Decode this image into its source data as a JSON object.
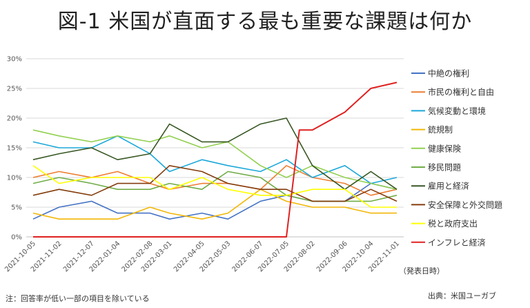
{
  "title": "図-1  米国が直面する最も重要な課題は何か",
  "footnote": "注：回答率が低い一部の項目を除いている",
  "source": "出典：米国ユーガブ",
  "x_unit": "（発表日時）",
  "chart_data": {
    "type": "line",
    "title": "図-1  米国が直面する最も重要な課題は何か",
    "xlabel": "（発表日時）",
    "ylabel": "",
    "ylim": [
      0,
      30
    ],
    "yticks": [
      0,
      5,
      10,
      15,
      20,
      25,
      30
    ],
    "ytick_labels": [
      "0%",
      "5%",
      "10%",
      "15%",
      "20%",
      "25%",
      "30%"
    ],
    "grid": true,
    "legend_position": "right",
    "categories": [
      "2021-10-05",
      "2021-11-02",
      "2021-12-07",
      "2022-01-04",
      "2022-02-08",
      "2022-03-01",
      "2022-04-05",
      "2022-05-03",
      "2022-06-07",
      "2022-07-05",
      "2022-08-02",
      "2022-09-06",
      "2022-10-04",
      "2022-11-01"
    ],
    "x_points": [
      "2021-10-05",
      "2021-11-02",
      "2021-12-07",
      "2022-01-04",
      "2022-02-08",
      "2022-03-01",
      "2022-04-05",
      "2022-05-03",
      "2022-06-07",
      "2022-07-05",
      "2022-08-02",
      "2022-09-06",
      "2022-10-04",
      "2022-11-01"
    ],
    "series": [
      {
        "name": "中絶の権利",
        "color": "#4472C4",
        "x": [
          "2021-10-05",
          "2021-11-02",
          "2021-12-07",
          "2022-01-04",
          "2022-02-08",
          "2022-03-01",
          "2022-04-05",
          "2022-05-03",
          "2022-06-07",
          "2022-07-05",
          "2022-08-02",
          "2022-09-06",
          "2022-10-04",
          "2022-11-01"
        ],
        "values": [
          3,
          5,
          6,
          4,
          4,
          3,
          4,
          3,
          6,
          7,
          6,
          6,
          9,
          8
        ]
      },
      {
        "name": "市民の権利と自由",
        "color": "#ED7D31",
        "x": [
          "2021-10-05",
          "2021-11-02",
          "2021-12-07",
          "2022-01-04",
          "2022-02-08",
          "2022-03-01",
          "2022-04-05",
          "2022-05-03",
          "2022-06-07",
          "2022-07-05",
          "2022-08-02",
          "2022-09-06",
          "2022-10-04",
          "2022-11-01"
        ],
        "values": [
          10,
          11,
          10,
          11,
          9,
          8,
          9,
          9,
          8,
          12,
          10,
          9,
          7,
          8
        ]
      },
      {
        "name": "気候変動と環境",
        "color": "#1BA8D9",
        "x": [
          "2021-10-05",
          "2021-11-02",
          "2021-12-07",
          "2022-01-04",
          "2022-02-08",
          "2022-03-01",
          "2022-04-05",
          "2022-05-03",
          "2022-06-07",
          "2022-07-05",
          "2022-08-02",
          "2022-09-06",
          "2022-10-04",
          "2022-11-01"
        ],
        "values": [
          16,
          15,
          15,
          17,
          14,
          11,
          13,
          12,
          11,
          13,
          10,
          12,
          9,
          10
        ]
      },
      {
        "name": "銃規制",
        "color": "#F2B705",
        "x": [
          "2021-10-05",
          "2021-11-02",
          "2021-12-07",
          "2022-01-04",
          "2022-02-08",
          "2022-03-01",
          "2022-04-05",
          "2022-05-03",
          "2022-06-07",
          "2022-07-05",
          "2022-08-02",
          "2022-09-06",
          "2022-10-04",
          "2022-11-01"
        ],
        "values": [
          4,
          3,
          3,
          3,
          5,
          4,
          3,
          4,
          8,
          6,
          5,
          5,
          4,
          4
        ]
      },
      {
        "name": "健康保険",
        "color": "#92D050",
        "x": [
          "2021-10-05",
          "2021-11-02",
          "2021-12-07",
          "2022-01-04",
          "2022-02-08",
          "2022-03-01",
          "2022-04-05",
          "2022-05-03",
          "2022-06-07",
          "2022-07-05",
          "2022-08-02",
          "2022-09-06",
          "2022-10-04",
          "2022-11-01"
        ],
        "values": [
          18,
          17,
          16,
          17,
          16,
          17,
          15,
          16,
          12,
          10,
          12,
          10,
          9,
          8
        ]
      },
      {
        "name": "移民問題",
        "color": "#70AD47",
        "x": [
          "2021-10-05",
          "2021-11-02",
          "2021-12-07",
          "2022-01-04",
          "2022-02-08",
          "2022-03-01",
          "2022-04-05",
          "2022-05-03",
          "2022-06-07",
          "2022-07-05",
          "2022-08-02",
          "2022-09-06",
          "2022-10-04",
          "2022-11-01"
        ],
        "values": [
          9,
          10,
          9,
          8,
          8,
          9,
          8,
          11,
          10,
          7,
          6,
          6,
          6,
          7
        ]
      },
      {
        "name": "雇用と経済",
        "color": "#385723",
        "x": [
          "2021-10-05",
          "2021-11-02",
          "2021-12-07",
          "2022-01-04",
          "2022-02-08",
          "2022-03-01",
          "2022-04-05",
          "2022-05-03",
          "2022-06-07",
          "2022-07-05",
          "2022-08-02",
          "2022-09-06",
          "2022-10-04",
          "2022-11-01"
        ],
        "values": [
          13,
          14,
          15,
          13,
          14,
          19,
          16,
          16,
          19,
          20,
          12,
          8,
          11,
          8
        ]
      },
      {
        "name": "安全保障と外交問題",
        "color": "#843C0C",
        "x": [
          "2021-10-05",
          "2021-11-02",
          "2021-12-07",
          "2022-01-04",
          "2022-02-08",
          "2022-03-01",
          "2022-04-05",
          "2022-05-03",
          "2022-06-07",
          "2022-07-05",
          "2022-08-02",
          "2022-09-06",
          "2022-10-04",
          "2022-11-01"
        ],
        "values": [
          7,
          8,
          7,
          9,
          9,
          12,
          11,
          9,
          8,
          8,
          6,
          6,
          8,
          6
        ]
      },
      {
        "name": "税と政府支出",
        "color": "#FFFF00",
        "x": [
          "2021-10-05",
          "2021-11-02",
          "2021-12-07",
          "2022-01-04",
          "2022-02-08",
          "2022-03-01",
          "2022-04-05",
          "2022-05-03",
          "2022-06-07",
          "2022-07-05",
          "2022-08-02",
          "2022-09-06",
          "2022-10-04",
          "2022-11-01"
        ],
        "values": [
          12,
          9,
          10,
          10,
          10,
          8,
          10,
          8,
          7,
          7,
          8,
          8,
          5,
          5
        ]
      },
      {
        "name": "インフレと経済",
        "color": "#E02020",
        "x": [
          "2021-10-05",
          "2021-11-02",
          "2021-12-07",
          "2022-01-04",
          "2022-02-08",
          "2022-03-01",
          "2022-04-05",
          "2022-05-03",
          "2022-06-07",
          "2022-07-05",
          "2022-07-19",
          "2022-08-02",
          "2022-09-06",
          "2022-10-04",
          "2022-11-01"
        ],
        "values": [
          0,
          0,
          0,
          0,
          0,
          0,
          0,
          0,
          0,
          0,
          18,
          18,
          21,
          25,
          26
        ]
      }
    ]
  }
}
